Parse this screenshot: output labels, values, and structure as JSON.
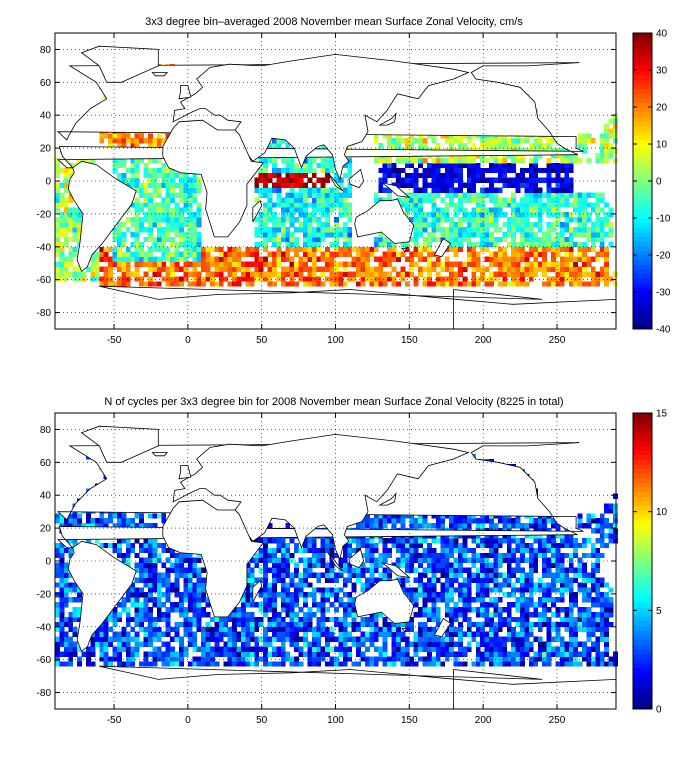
{
  "chart_data": [
    {
      "type": "heatmap",
      "title": "3x3 degree bin–averaged 2008 November mean Surface Zonal Velocity, cm/s",
      "xlim": [
        -90,
        290
      ],
      "ylim": [
        -90,
        90
      ],
      "xticks": [
        -50,
        0,
        50,
        100,
        150,
        200,
        250
      ],
      "yticks": [
        80,
        60,
        40,
        20,
        0,
        -20,
        -40,
        -60,
        -80
      ],
      "bin_size_deg": 3,
      "grid": true,
      "colormap": "jet",
      "clim": [
        -40,
        40
      ],
      "colorbar_ticks": [
        40,
        30,
        20,
        10,
        0,
        -10,
        -20,
        -30,
        -40
      ],
      "colorbar_placement": "right",
      "cell_colors": {
        "plot_background": "#ffffff",
        "coastline": "#000000",
        "grid": "#000000"
      },
      "regions": [
        {
          "lon": [
            -90,
            -60
          ],
          "lat": [
            -60,
            20
          ],
          "mean": 2,
          "spread": 14
        },
        {
          "lon": [
            -60,
            -10
          ],
          "lat": [
            20,
            70
          ],
          "mean": 18,
          "spread": 12
        },
        {
          "lon": [
            -50,
            10
          ],
          "lat": [
            -50,
            20
          ],
          "mean": -5,
          "spread": 12
        },
        {
          "lon": [
            -60,
            130
          ],
          "lat": [
            -65,
            -40
          ],
          "mean": 22,
          "spread": 12
        },
        {
          "lon": [
            45,
            100
          ],
          "lat": [
            -5,
            5
          ],
          "mean": 35,
          "spread": 8
        },
        {
          "lon": [
            45,
            110
          ],
          "lat": [
            -40,
            25
          ],
          "mean": -8,
          "spread": 12
        },
        {
          "lon": [
            130,
            260
          ],
          "lat": [
            -6,
            10
          ],
          "mean": -32,
          "spread": 8
        },
        {
          "lon": [
            125,
            290
          ],
          "lat": [
            -40,
            -6
          ],
          "mean": -6,
          "spread": 12
        },
        {
          "lon": [
            125,
            290
          ],
          "lat": [
            10,
            55
          ],
          "mean": 4,
          "spread": 13
        },
        {
          "lon": [
            130,
            290
          ],
          "lat": [
            -65,
            -40
          ],
          "mean": 20,
          "spread": 12
        }
      ]
    },
    {
      "type": "heatmap",
      "title": "N of cycles per 3x3 degree bin for 2008 November mean Surface Zonal Velocity (8225 in total)",
      "xlim": [
        -90,
        290
      ],
      "ylim": [
        -90,
        90
      ],
      "xticks": [
        -50,
        0,
        50,
        100,
        150,
        200,
        250
      ],
      "yticks": [
        80,
        60,
        40,
        20,
        0,
        -20,
        -40,
        -60,
        -80
      ],
      "bin_size_deg": 3,
      "total_count": 8225,
      "grid": true,
      "colormap": "jet",
      "clim": [
        0,
        15
      ],
      "colorbar_ticks": [
        15,
        10,
        5,
        0
      ],
      "colorbar_placement": "right",
      "regions": [
        {
          "lon": [
            -90,
            290
          ],
          "lat": [
            -65,
            65
          ],
          "mean": 3,
          "spread": 3
        }
      ]
    }
  ]
}
